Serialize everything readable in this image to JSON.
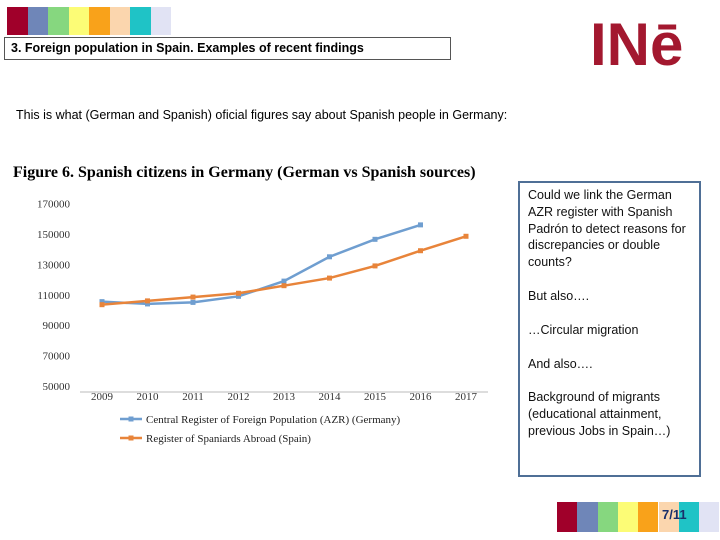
{
  "header": {
    "squares": [
      "#a0002a",
      "#6f86b8",
      "#86d77f",
      "#fcfc76",
      "#f9a21a",
      "#fbd6ae",
      "#1fc3c6",
      "#e1e3f4"
    ],
    "title": "3. Foreign population in Spain. Examples of recent findings",
    "logo_text": "INē",
    "logo_color": "#a3182f"
  },
  "intro": "This is what (German and Spanish) oficial figures say about Spanish people in Germany:",
  "figure_title": {
    "prefix": "Figure 6. Spanish citizens in Germany",
    "suffix": "(German vs Spanish sources)"
  },
  "chart_data": {
    "type": "line",
    "x": [
      "2009",
      "2010",
      "2011",
      "2012",
      "2013",
      "2014",
      "2015",
      "2016",
      "2017"
    ],
    "yticks": [
      "170000",
      "150000",
      "130000",
      "110000",
      "90000",
      "70000",
      "50000"
    ],
    "ylim": [
      50000,
      175000
    ],
    "grid": false,
    "legend_position": "bottom",
    "series": [
      {
        "name": "Central Register of Foreign Population (AZR) (Germany)",
        "color": "#6f9ed0",
        "values": [
          105500,
          104000,
          105000,
          109000,
          119000,
          135000,
          146500,
          156000,
          null
        ]
      },
      {
        "name": "Register of Spaniards Abroad (Spain)",
        "color": "#e8843a",
        "values": [
          103500,
          106000,
          108500,
          111000,
          116000,
          121000,
          129000,
          139000,
          148500
        ]
      }
    ]
  },
  "sidebox": {
    "p1": "Could we link  the German AZR register with Spanish Padrón to detect reasons for discrepancies or double counts?",
    "p2": "But also….",
    "p3": "…Circular migration",
    "p4": "And also….",
    "p5": "Background of migrants (educational attainment, previous Jobs in Spain…)"
  },
  "footer": {
    "squares": [
      "#a0002a",
      "#6f86b8",
      "#86d77f",
      "#fcfc76",
      "#f9a21a",
      "#fbd6ae",
      "#1fc3c6",
      "#e1e3f4"
    ],
    "page": "7/11"
  }
}
